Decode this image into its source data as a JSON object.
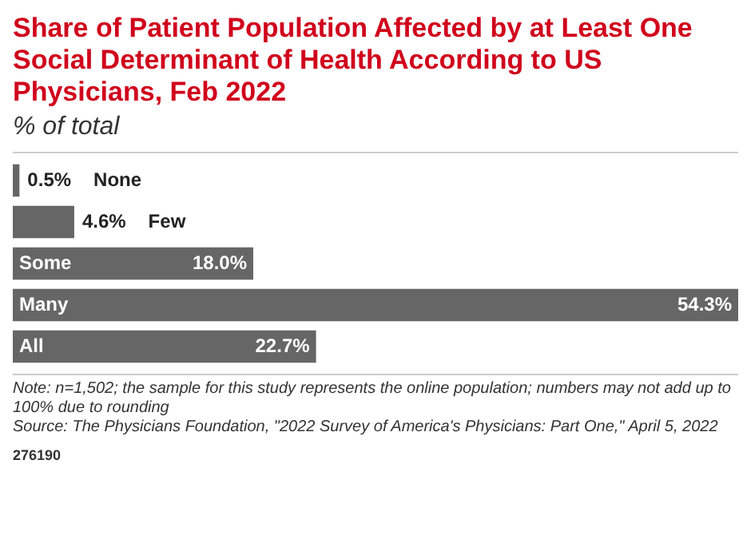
{
  "chart_data": {
    "type": "bar",
    "orientation": "horizontal",
    "title": "Share of Patient Population Affected by at Least One Social Determinant of Health According to US Physicians, Feb 2022",
    "subtitle": "% of total",
    "categories": [
      "None",
      "Few",
      "Some",
      "Many",
      "All"
    ],
    "values": [
      0.5,
      4.6,
      18.0,
      54.3,
      22.7
    ],
    "value_labels": [
      "0.5%",
      "4.6%",
      "18.0%",
      "54.3%",
      "22.7%"
    ],
    "color": "#666666",
    "annotations": [
      "Note: n=1,502; the sample for this study represents the online population; numbers may not add up to 100% due to rounding",
      "Source: The Physicians Foundation, \"2022 Survey of America's Physicians: Part One,\" April 5, 2022",
      "276190"
    ]
  }
}
